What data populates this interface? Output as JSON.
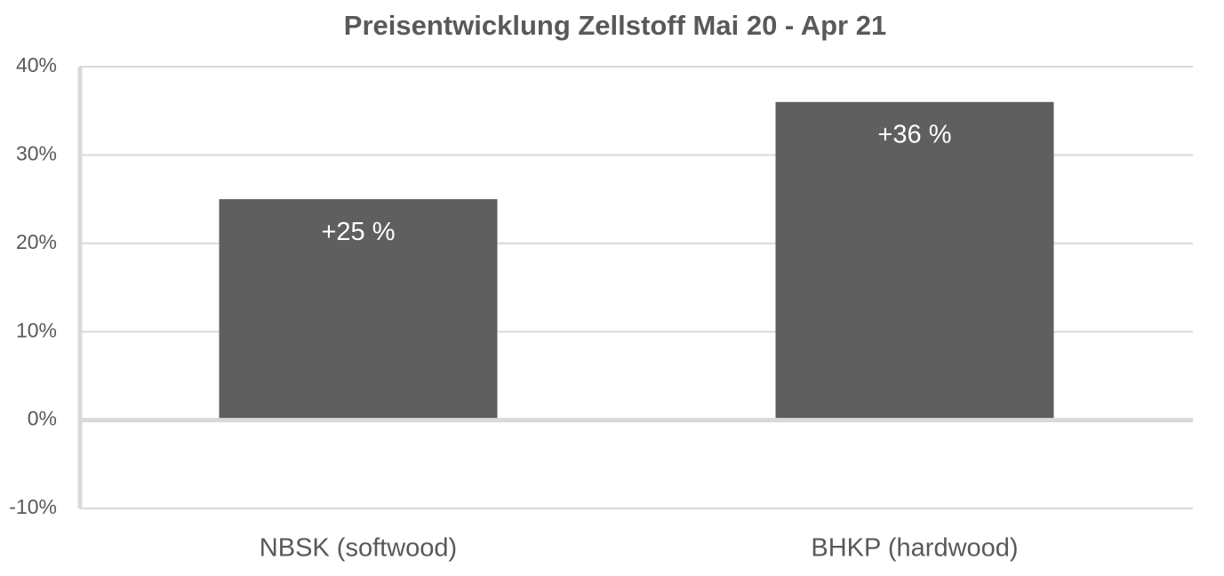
{
  "chart_data": {
    "type": "bar",
    "title": "Preisentwicklung Zellstoff Mai 20 - Apr 21",
    "categories": [
      "NBSK (softwood)",
      "BHKP (hardwood)"
    ],
    "values": [
      25,
      36
    ],
    "value_labels": [
      "+25 %",
      "+36 %"
    ],
    "color": "#5f5f5f",
    "ylim": [
      -10,
      40
    ],
    "yticks": [
      {
        "value": -10,
        "label": "-10%"
      },
      {
        "value": 0,
        "label": "0%"
      },
      {
        "value": 10,
        "label": "10%"
      },
      {
        "value": 20,
        "label": "20%"
      },
      {
        "value": 30,
        "label": "30%"
      },
      {
        "value": 40,
        "label": "40%"
      }
    ],
    "grid": true
  }
}
